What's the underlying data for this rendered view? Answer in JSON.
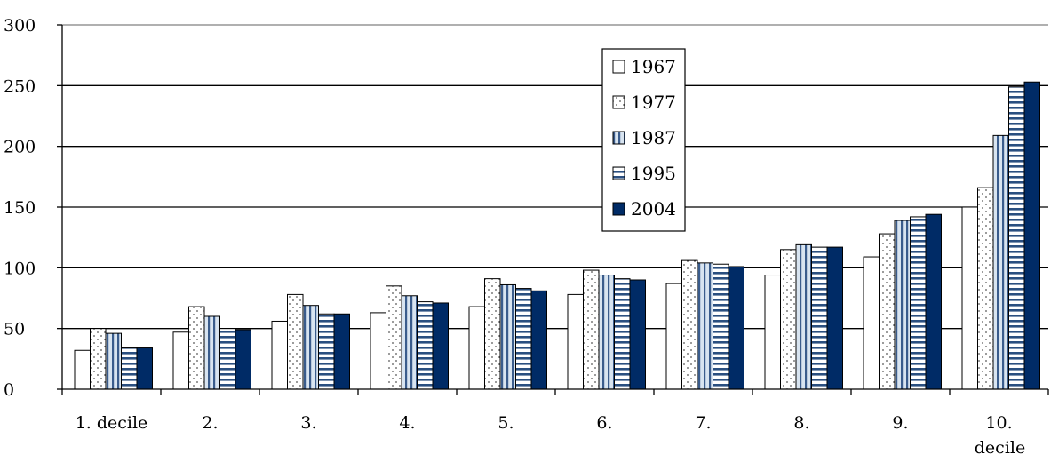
{
  "chart_data": {
    "type": "bar",
    "title": "",
    "xlabel": "",
    "ylabel": "",
    "ylim": [
      0,
      300
    ],
    "yticks": [
      0,
      50,
      100,
      150,
      200,
      250,
      300
    ],
    "grid": true,
    "legend_position": "upper-middle-right",
    "categories": [
      [
        "1. decile"
      ],
      [
        "2."
      ],
      [
        "3."
      ],
      [
        "4."
      ],
      [
        "5."
      ],
      [
        "6."
      ],
      [
        "7."
      ],
      [
        "8."
      ],
      [
        "9."
      ],
      [
        "10.",
        "decile"
      ]
    ],
    "series": [
      {
        "name": "1967",
        "pattern": "white",
        "values": [
          32,
          47,
          56,
          63,
          68,
          78,
          87,
          94,
          109,
          150
        ]
      },
      {
        "name": "1977",
        "pattern": "dots",
        "values": [
          50,
          68,
          78,
          85,
          91,
          98,
          106,
          115,
          128,
          166
        ]
      },
      {
        "name": "1987",
        "pattern": "vertical-stripes",
        "values": [
          46,
          60,
          69,
          77,
          86,
          94,
          104,
          119,
          139,
          209
        ]
      },
      {
        "name": "1995",
        "pattern": "horizontal-stripes",
        "values": [
          34,
          50,
          62,
          72,
          83,
          91,
          103,
          117,
          142,
          249
        ]
      },
      {
        "name": "2004",
        "pattern": "solid-navy",
        "values": [
          34,
          49,
          62,
          71,
          81,
          90,
          101,
          117,
          144,
          253
        ]
      }
    ],
    "colors": {
      "navy": "#002b66",
      "stripe": "#3a5c8c",
      "light_blue": "#d8e4f0",
      "white": "#ffffff",
      "black": "#000000"
    }
  }
}
